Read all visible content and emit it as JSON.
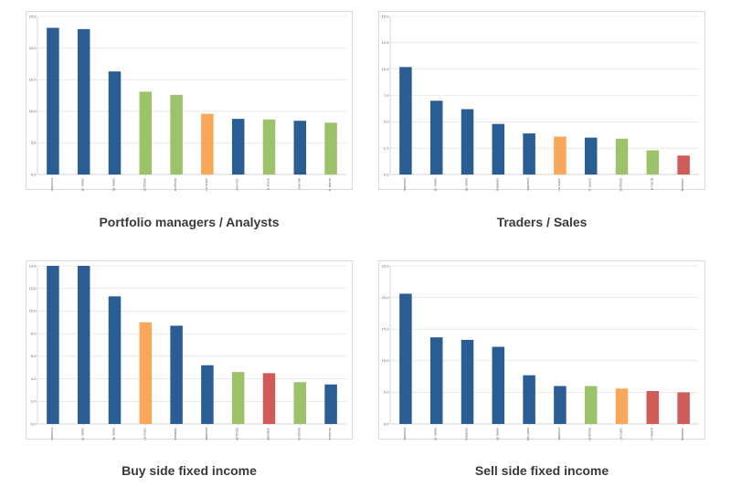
{
  "colors": {
    "blue": "#2a5d93",
    "green": "#9dc36a",
    "orange": "#f9a75a",
    "red": "#d05c57",
    "grid": "#dcdcdc"
  },
  "chart_data": [
    {
      "type": "bar",
      "title": "Portfolio managers / Analysts",
      "ylim": [
        0,
        25
      ],
      "yticks": [
        "0.0",
        "5.0",
        "10.0",
        "15.0",
        "20.0",
        "25.0"
      ],
      "grid": true,
      "categories": [
        "Pre-market snapshot",
        "Top news",
        "Breaking news",
        "News on a portfolio",
        "Research on a portfolio",
        "IB on a topic",
        "Upcoming economic",
        "Market on a stock",
        "Wall street journal",
        "Overnight alerts"
      ],
      "values": [
        23.2,
        23.0,
        16.3,
        13.1,
        12.6,
        9.6,
        8.8,
        8.7,
        8.5,
        8.2
      ],
      "colors": [
        "blue",
        "blue",
        "blue",
        "green",
        "green",
        "orange",
        "blue",
        "green",
        "blue",
        "green"
      ]
    },
    {
      "type": "bar",
      "title": "Traders / Sales",
      "ylim": [
        0,
        15
      ],
      "yticks": [
        "0.0",
        "2.5",
        "5.0",
        "7.5",
        "10.0",
        "12.5",
        "15.0"
      ],
      "grid": true,
      "categories": [
        "Pre-market snapshot",
        "Top news",
        "Breaking news",
        "Upcoming releases",
        "Closing market snapshot",
        "IB on a topic",
        "Missed news from for years",
        "News on a portfolio",
        "Market on a trend",
        "Weather"
      ],
      "values": [
        10.2,
        7.0,
        6.2,
        4.8,
        3.9,
        3.6,
        3.5,
        3.4,
        2.3,
        1.8
      ],
      "colors": [
        "blue",
        "blue",
        "blue",
        "blue",
        "blue",
        "orange",
        "blue",
        "green",
        "green",
        "red"
      ]
    },
    {
      "type": "bar",
      "title": "Buy side fixed income",
      "ylim": [
        0,
        14
      ],
      "yticks": [
        "0.0",
        "2.0",
        "4.0",
        "6.0",
        "8.0",
        "10.0",
        "12.0",
        "14.0"
      ],
      "grid": true,
      "categories": [
        "Pre-market snapshot",
        "Top news",
        "Breaking news",
        "IB on a topic",
        "Upcoming releases",
        "Closing market snapshot",
        "Research on a portfolio",
        "Outlook calendar",
        "News on a portfolio",
        "Upcoming FED announcements"
      ],
      "values": [
        15.0,
        14.3,
        11.3,
        9.0,
        8.7,
        5.2,
        4.6,
        4.5,
        3.7,
        3.5
      ],
      "colors": [
        "blue",
        "blue",
        "blue",
        "orange",
        "blue",
        "blue",
        "green",
        "red",
        "green",
        "blue"
      ]
    },
    {
      "type": "bar",
      "title": "Sell side fixed income",
      "ylim": [
        0,
        25
      ],
      "yticks": [
        "0.0",
        "5.0",
        "10.0",
        "15.0",
        "20.0",
        "25.0"
      ],
      "grid": true,
      "categories": [
        "Pre-market snapshot",
        "Top news",
        "Upcoming releases",
        "Breaking news",
        "Missed news weekly past",
        "Closing market snapshot",
        "News on a portfolio",
        "IB on a topic",
        "Plan by month",
        "Weather"
      ],
      "values": [
        20.6,
        13.7,
        13.3,
        12.2,
        7.7,
        6.0,
        6.0,
        5.6,
        5.2,
        5.0
      ],
      "colors": [
        "blue",
        "blue",
        "blue",
        "blue",
        "blue",
        "blue",
        "green",
        "orange",
        "red",
        "red"
      ]
    }
  ]
}
